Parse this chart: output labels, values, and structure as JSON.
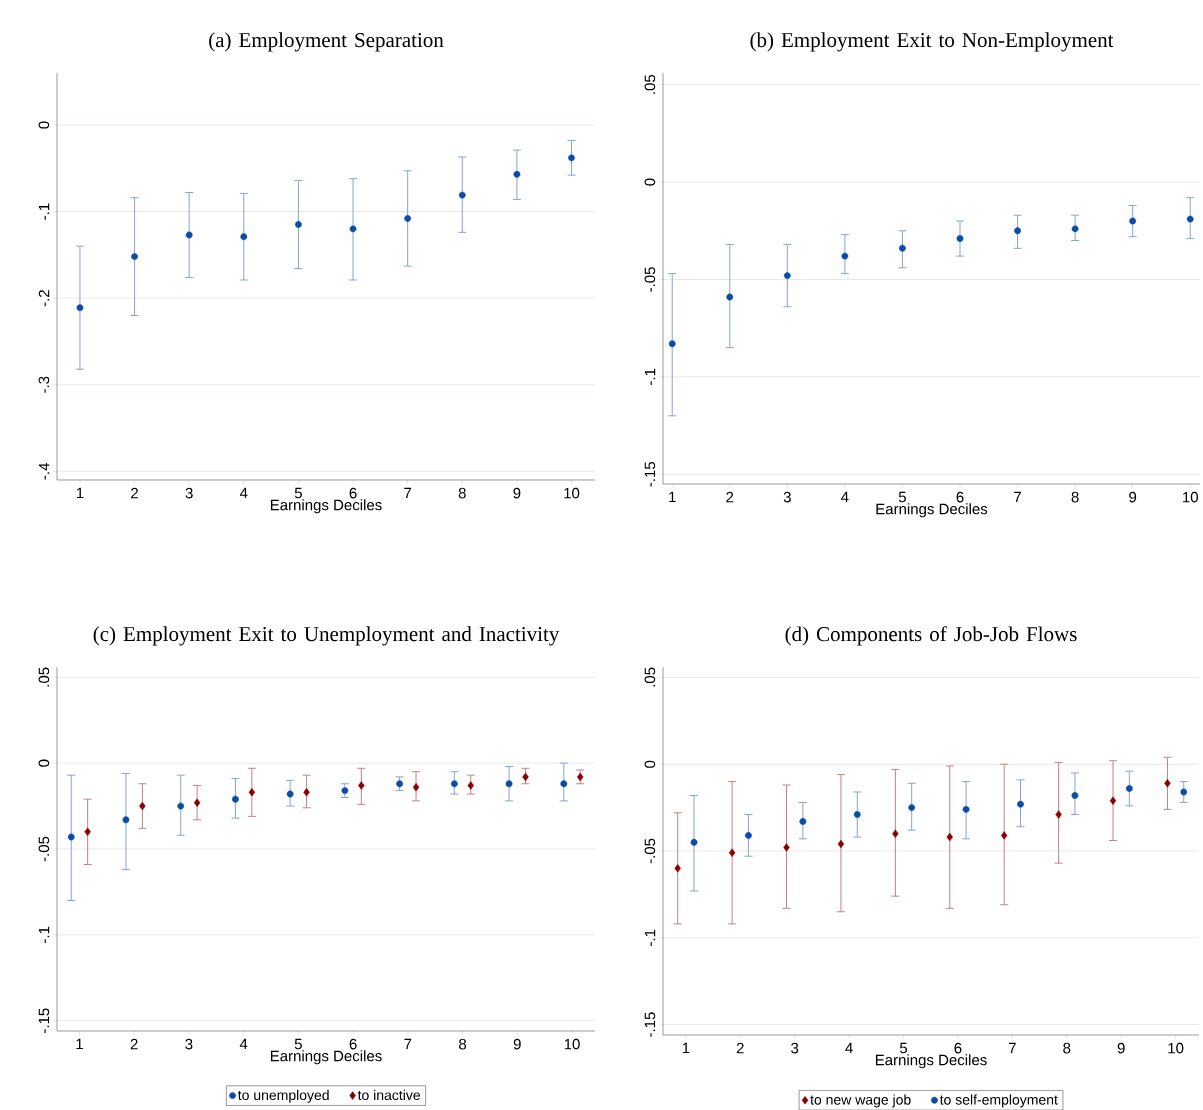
{
  "chart_data": [
    {
      "type": "scatter",
      "title": "(a) Employment Separation",
      "xlabel": "Earnings Deciles",
      "xlim": [
        0.58,
        10.43
      ],
      "xticks": [
        1,
        2,
        3,
        4,
        5,
        6,
        7,
        8,
        9,
        10
      ],
      "ylim": [
        -0.41,
        0.06
      ],
      "yticks": [
        {
          "value": -0.4,
          "label": "-.4"
        },
        {
          "value": -0.3,
          "label": "-.3"
        },
        {
          "value": -0.2,
          "label": "-.2"
        },
        {
          "value": -0.1,
          "label": "-.1"
        },
        0
      ],
      "grid": "y",
      "series": [
        {
          "color": "#0a4ca6",
          "marker": "circle",
          "x": [
            1,
            2,
            3,
            4,
            5,
            6,
            7,
            8,
            9,
            10
          ],
          "values": [
            -0.211,
            -0.152,
            -0.127,
            -0.129,
            -0.115,
            -0.12,
            -0.108,
            -0.081,
            -0.057,
            -0.038
          ],
          "errors": [
            [
              -0.282,
              -0.14
            ],
            [
              -0.22,
              -0.084
            ],
            [
              -0.176,
              -0.078
            ],
            [
              -0.179,
              -0.079
            ],
            [
              -0.166,
              -0.064
            ],
            [
              -0.179,
              -0.062
            ],
            [
              -0.163,
              -0.053
            ],
            [
              -0.124,
              -0.037
            ],
            [
              -0.086,
              -0.029
            ],
            [
              -0.058,
              -0.018
            ]
          ]
        }
      ]
    },
    {
      "type": "scatter",
      "title": "(b) Employment Exit to Non-Employment",
      "xlabel": "Earnings Deciles",
      "xlim": [
        0.84,
        10.17
      ],
      "xticks": [
        1,
        2,
        3,
        4,
        5,
        6,
        7,
        8,
        9,
        10
      ],
      "ylim": [
        -0.155,
        0.056
      ],
      "yticks": [
        {
          "value": -0.15,
          "label": "-.15"
        },
        {
          "value": -0.1,
          "label": "-.1"
        },
        {
          "value": -0.05,
          "label": "-.05"
        },
        0,
        {
          "value": 0.05,
          "label": ".05"
        }
      ],
      "grid": "y",
      "series": [
        {
          "color": "#0a4ca6",
          "marker": "circle",
          "x": [
            1,
            2,
            3,
            4,
            5,
            6,
            7,
            8,
            9,
            10
          ],
          "values": [
            -0.083,
            -0.059,
            -0.048,
            -0.038,
            -0.034,
            -0.029,
            -0.025,
            -0.024,
            -0.02,
            -0.019
          ],
          "errors": [
            [
              -0.12,
              -0.047
            ],
            [
              -0.085,
              -0.032
            ],
            [
              -0.064,
              -0.032
            ],
            [
              -0.047,
              -0.027
            ],
            [
              -0.044,
              -0.025
            ],
            [
              -0.038,
              -0.02
            ],
            [
              -0.034,
              -0.017
            ],
            [
              -0.03,
              -0.017
            ],
            [
              -0.028,
              -0.012
            ],
            [
              -0.029,
              -0.008
            ]
          ]
        }
      ]
    },
    {
      "type": "scatter",
      "title": "(c) Employment Exit to Unemployment and Inactivity",
      "xlabel": "Earnings Deciles",
      "xlim": [
        0.59,
        10.42
      ],
      "xticks": [
        1,
        2,
        3,
        4,
        5,
        6,
        7,
        8,
        9,
        10
      ],
      "ylim": [
        -0.156,
        0.056
      ],
      "yticks": [
        {
          "value": -0.15,
          "label": "-.15"
        },
        {
          "value": -0.1,
          "label": "-.1"
        },
        {
          "value": -0.05,
          "label": "-.05"
        },
        0,
        {
          "value": 0.05,
          "label": ".05"
        }
      ],
      "grid": "y",
      "legend": "bottom",
      "series": [
        {
          "name": "to unemployed",
          "color": "#0a4ca6",
          "marker": "circle",
          "x": [
            0.85,
            1.85,
            2.85,
            3.85,
            4.85,
            5.85,
            6.85,
            7.85,
            8.85,
            9.85
          ],
          "values": [
            -0.043,
            -0.033,
            -0.025,
            -0.021,
            -0.018,
            -0.016,
            -0.012,
            -0.012,
            -0.012,
            -0.012
          ],
          "errors": [
            [
              -0.08,
              -0.007
            ],
            [
              -0.062,
              -0.006
            ],
            [
              -0.042,
              -0.007
            ],
            [
              -0.032,
              -0.009
            ],
            [
              -0.025,
              -0.01
            ],
            [
              -0.02,
              -0.012
            ],
            [
              -0.016,
              -0.008
            ],
            [
              -0.018,
              -0.005
            ],
            [
              -0.022,
              -0.002
            ],
            [
              -0.022,
              0.0
            ]
          ]
        },
        {
          "name": "to inactive",
          "color": "#8b0000",
          "marker": "diamond",
          "x": [
            1.15,
            2.15,
            3.15,
            4.15,
            5.15,
            6.15,
            7.15,
            8.15,
            9.15,
            10.15
          ],
          "values": [
            -0.04,
            -0.025,
            -0.023,
            -0.017,
            -0.017,
            -0.013,
            -0.014,
            -0.013,
            -0.008,
            -0.008
          ],
          "errors": [
            [
              -0.059,
              -0.021
            ],
            [
              -0.038,
              -0.012
            ],
            [
              -0.033,
              -0.013
            ],
            [
              -0.031,
              -0.003
            ],
            [
              -0.026,
              -0.007
            ],
            [
              -0.024,
              -0.003
            ],
            [
              -0.022,
              -0.005
            ],
            [
              -0.018,
              -0.007
            ],
            [
              -0.012,
              -0.003
            ],
            [
              -0.012,
              -0.004
            ]
          ]
        }
      ]
    },
    {
      "type": "scatter",
      "title": "(d) Components of Job-Job Flows",
      "xlabel": "Earnings Deciles",
      "xlim": [
        0.58,
        10.43
      ],
      "xticks": [
        1,
        2,
        3,
        4,
        5,
        6,
        7,
        8,
        9,
        10
      ],
      "ylim": [
        -0.156,
        0.056
      ],
      "yticks": [
        {
          "value": -0.15,
          "label": "-.15"
        },
        {
          "value": -0.1,
          "label": "-.1"
        },
        {
          "value": -0.05,
          "label": "-.05"
        },
        0,
        {
          "value": 0.05,
          "label": ".05"
        }
      ],
      "grid": "y",
      "legend": "bottom",
      "series": [
        {
          "name": "to new wage job",
          "color": "#8b0000",
          "marker": "diamond",
          "x": [
            0.85,
            1.85,
            2.85,
            3.85,
            4.85,
            5.85,
            6.85,
            7.85,
            8.85,
            9.85
          ],
          "values": [
            -0.06,
            -0.051,
            -0.048,
            -0.046,
            -0.04,
            -0.042,
            -0.041,
            -0.029,
            -0.021,
            -0.011
          ],
          "errors": [
            [
              -0.092,
              -0.028
            ],
            [
              -0.092,
              -0.01
            ],
            [
              -0.083,
              -0.012
            ],
            [
              -0.085,
              -0.006
            ],
            [
              -0.076,
              -0.003
            ],
            [
              -0.083,
              -0.001
            ],
            [
              -0.081,
              0.0
            ],
            [
              -0.057,
              0.001
            ],
            [
              -0.044,
              0.002
            ],
            [
              -0.026,
              0.004
            ]
          ]
        },
        {
          "name": "to self-employment",
          "color": "#0a4ca6",
          "marker": "circle",
          "x": [
            1.15,
            2.15,
            3.15,
            4.15,
            5.15,
            6.15,
            7.15,
            8.15,
            9.15,
            10.15
          ],
          "values": [
            -0.045,
            -0.041,
            -0.033,
            -0.029,
            -0.025,
            -0.026,
            -0.023,
            -0.018,
            -0.014,
            -0.016
          ],
          "errors": [
            [
              -0.073,
              -0.018
            ],
            [
              -0.053,
              -0.029
            ],
            [
              -0.043,
              -0.022
            ],
            [
              -0.042,
              -0.016
            ],
            [
              -0.038,
              -0.011
            ],
            [
              -0.043,
              -0.01
            ],
            [
              -0.036,
              -0.009
            ],
            [
              -0.029,
              -0.005
            ],
            [
              -0.024,
              -0.004
            ],
            [
              -0.022,
              -0.01
            ]
          ]
        }
      ]
    }
  ]
}
